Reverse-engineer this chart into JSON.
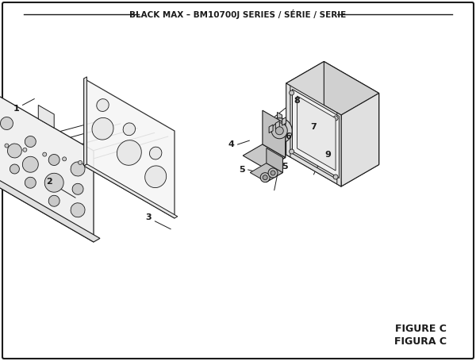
{
  "title": "BLACK MAX – BM10700J SERIES / SÉRIE / SERIE",
  "figure_label": "FIGURE C",
  "figura_label": "FIGURA C",
  "bg_color": "#ffffff",
  "line_color": "#1a1a1a",
  "fill_light": "#f2f2f2",
  "fill_mid": "#e0e0e0",
  "fill_dark": "#c8c8c8",
  "fill_darker": "#b0b0b0"
}
